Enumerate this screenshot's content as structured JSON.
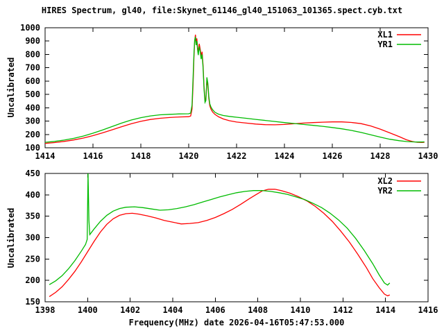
{
  "title": "HIRES Spectrum, gl40, file:Skynet_61146_gl40_151063_101365.spect.cyb.txt",
  "colors": {
    "background": "#ffffff",
    "axis": "#000000",
    "xl_series": "#ff0000",
    "yr_series": "#00bb00"
  },
  "chart_data": [
    {
      "type": "line",
      "panel": "top",
      "ylabel": "Uncalibrated",
      "xlim": [
        1414,
        1430
      ],
      "ylim": [
        100,
        1000
      ],
      "xticks": [
        "1414",
        "1416",
        "1418",
        "1420",
        "1422",
        "1424",
        "1426",
        "1428",
        "1430"
      ],
      "yticks": [
        "100",
        "200",
        "300",
        "400",
        "500",
        "600",
        "700",
        "800",
        "900",
        "1000"
      ],
      "grid": false,
      "legend_position": "top-right",
      "series": [
        {
          "name": "XL1",
          "color": "#ff0000",
          "points": [
            [
              1414.0,
              133
            ],
            [
              1414.4,
              139
            ],
            [
              1414.8,
              148
            ],
            [
              1415.2,
              159
            ],
            [
              1415.6,
              173
            ],
            [
              1416.0,
              191
            ],
            [
              1416.4,
              212
            ],
            [
              1416.8,
              235
            ],
            [
              1417.2,
              258
            ],
            [
              1417.6,
              280
            ],
            [
              1418.0,
              298
            ],
            [
              1418.4,
              312
            ],
            [
              1418.8,
              321
            ],
            [
              1419.2,
              327
            ],
            [
              1419.6,
              331
            ],
            [
              1420.0,
              333
            ],
            [
              1420.08,
              338
            ],
            [
              1420.14,
              390
            ],
            [
              1420.18,
              560
            ],
            [
              1420.22,
              780
            ],
            [
              1420.25,
              900
            ],
            [
              1420.28,
              948
            ],
            [
              1420.31,
              890
            ],
            [
              1420.34,
              920
            ],
            [
              1420.37,
              855
            ],
            [
              1420.4,
              815
            ],
            [
              1420.44,
              880
            ],
            [
              1420.48,
              840
            ],
            [
              1420.52,
              790
            ],
            [
              1420.56,
              820
            ],
            [
              1420.6,
              720
            ],
            [
              1420.64,
              560
            ],
            [
              1420.68,
              455
            ],
            [
              1420.72,
              470
            ],
            [
              1420.76,
              600
            ],
            [
              1420.8,
              565
            ],
            [
              1420.84,
              470
            ],
            [
              1420.88,
              415
            ],
            [
              1420.93,
              390
            ],
            [
              1421.0,
              368
            ],
            [
              1421.1,
              350
            ],
            [
              1421.25,
              332
            ],
            [
              1421.45,
              316
            ],
            [
              1421.7,
              303
            ],
            [
              1422.0,
              293
            ],
            [
              1422.4,
              285
            ],
            [
              1422.8,
              278
            ],
            [
              1423.2,
              273
            ],
            [
              1423.6,
              272
            ],
            [
              1424.0,
              275
            ],
            [
              1424.4,
              280
            ],
            [
              1424.8,
              285
            ],
            [
              1425.2,
              289
            ],
            [
              1425.6,
              292
            ],
            [
              1426.0,
              294
            ],
            [
              1426.4,
              294
            ],
            [
              1426.8,
              290
            ],
            [
              1427.2,
              281
            ],
            [
              1427.6,
              264
            ],
            [
              1428.0,
              240
            ],
            [
              1428.4,
              212
            ],
            [
              1428.8,
              183
            ],
            [
              1429.1,
              160
            ],
            [
              1429.35,
              147
            ],
            [
              1429.55,
              141
            ],
            [
              1429.75,
              140
            ],
            [
              1429.85,
              141
            ]
          ]
        },
        {
          "name": "YR1",
          "color": "#00bb00",
          "points": [
            [
              1414.0,
              141
            ],
            [
              1414.4,
              148
            ],
            [
              1414.8,
              158
            ],
            [
              1415.2,
              171
            ],
            [
              1415.6,
              188
            ],
            [
              1416.0,
              209
            ],
            [
              1416.4,
              233
            ],
            [
              1416.8,
              259
            ],
            [
              1417.2,
              285
            ],
            [
              1417.6,
              308
            ],
            [
              1418.0,
              326
            ],
            [
              1418.4,
              339
            ],
            [
              1418.8,
              347
            ],
            [
              1419.2,
              351
            ],
            [
              1419.6,
              354
            ],
            [
              1420.0,
              355
            ],
            [
              1420.08,
              360
            ],
            [
              1420.14,
              420
            ],
            [
              1420.18,
              610
            ],
            [
              1420.22,
              810
            ],
            [
              1420.25,
              905
            ],
            [
              1420.28,
              932
            ],
            [
              1420.31,
              870
            ],
            [
              1420.34,
              900
            ],
            [
              1420.37,
              835
            ],
            [
              1420.4,
              795
            ],
            [
              1420.44,
              860
            ],
            [
              1420.48,
              820
            ],
            [
              1420.52,
              765
            ],
            [
              1420.56,
              800
            ],
            [
              1420.6,
              700
            ],
            [
              1420.64,
              540
            ],
            [
              1420.68,
              440
            ],
            [
              1420.72,
              455
            ],
            [
              1420.76,
              628
            ],
            [
              1420.8,
              585
            ],
            [
              1420.84,
              485
            ],
            [
              1420.88,
              430
            ],
            [
              1420.93,
              405
            ],
            [
              1421.0,
              385
            ],
            [
              1421.1,
              366
            ],
            [
              1421.25,
              352
            ],
            [
              1421.45,
              342
            ],
            [
              1421.7,
              335
            ],
            [
              1422.0,
              329
            ],
            [
              1422.4,
              321
            ],
            [
              1422.8,
              313
            ],
            [
              1423.2,
              305
            ],
            [
              1423.6,
              297
            ],
            [
              1424.0,
              289
            ],
            [
              1424.4,
              282
            ],
            [
              1424.8,
              275
            ],
            [
              1425.2,
              268
            ],
            [
              1425.6,
              261
            ],
            [
              1426.0,
              252
            ],
            [
              1426.4,
              242
            ],
            [
              1426.8,
              230
            ],
            [
              1427.2,
              215
            ],
            [
              1427.6,
              198
            ],
            [
              1428.0,
              180
            ],
            [
              1428.4,
              164
            ],
            [
              1428.8,
              153
            ],
            [
              1429.1,
              147
            ],
            [
              1429.35,
              144
            ],
            [
              1429.55,
              143
            ],
            [
              1429.75,
              143
            ],
            [
              1429.85,
              144
            ]
          ]
        }
      ]
    },
    {
      "type": "line",
      "panel": "bottom",
      "xlabel": "Frequency(MHz) date 2026-04-16T05:47:53.000",
      "ylabel": "Uncalibrated",
      "xlim": [
        1398,
        1416
      ],
      "ylim": [
        150,
        450
      ],
      "xticks": [
        "1398",
        "1400",
        "1402",
        "1404",
        "1406",
        "1408",
        "1410",
        "1412",
        "1414",
        "1416"
      ],
      "yticks": [
        "150",
        "200",
        "250",
        "300",
        "350",
        "400",
        "450"
      ],
      "grid": false,
      "legend_position": "top-right",
      "series": [
        {
          "name": "XL2",
          "color": "#ff0000",
          "points": [
            [
              1398.2,
              162
            ],
            [
              1398.5,
              172
            ],
            [
              1398.8,
              185
            ],
            [
              1399.1,
              202
            ],
            [
              1399.4,
              221
            ],
            [
              1399.7,
              243
            ],
            [
              1400.0,
              267
            ],
            [
              1400.3,
              291
            ],
            [
              1400.6,
              313
            ],
            [
              1400.9,
              331
            ],
            [
              1401.2,
              344
            ],
            [
              1401.5,
              352
            ],
            [
              1401.8,
              356
            ],
            [
              1402.1,
              357
            ],
            [
              1402.4,
              355
            ],
            [
              1402.8,
              351
            ],
            [
              1403.2,
              346
            ],
            [
              1403.6,
              340
            ],
            [
              1404.0,
              336
            ],
            [
              1404.4,
              332
            ],
            [
              1404.8,
              333
            ],
            [
              1405.2,
              335
            ],
            [
              1405.6,
              340
            ],
            [
              1406.0,
              347
            ],
            [
              1406.4,
              356
            ],
            [
              1406.8,
              366
            ],
            [
              1407.2,
              378
            ],
            [
              1407.6,
              391
            ],
            [
              1407.9,
              400
            ],
            [
              1408.2,
              409
            ],
            [
              1408.5,
              413
            ],
            [
              1408.8,
              413
            ],
            [
              1409.1,
              410
            ],
            [
              1409.5,
              404
            ],
            [
              1409.9,
              396
            ],
            [
              1410.3,
              386
            ],
            [
              1410.7,
              373
            ],
            [
              1411.1,
              357
            ],
            [
              1411.5,
              338
            ],
            [
              1411.9,
              315
            ],
            [
              1412.3,
              290
            ],
            [
              1412.7,
              261
            ],
            [
              1413.1,
              230
            ],
            [
              1413.4,
              204
            ],
            [
              1413.7,
              183
            ],
            [
              1413.95,
              168
            ],
            [
              1414.1,
              164
            ],
            [
              1414.2,
              166
            ]
          ]
        },
        {
          "name": "YR2",
          "color": "#00bb00",
          "points": [
            [
              1398.2,
              190
            ],
            [
              1398.5,
              199
            ],
            [
              1398.8,
              211
            ],
            [
              1399.1,
              227
            ],
            [
              1399.4,
              246
            ],
            [
              1399.7,
              268
            ],
            [
              1399.9,
              284
            ],
            [
              1399.98,
              296
            ],
            [
              1400.02,
              450
            ],
            [
              1400.06,
              340
            ],
            [
              1400.1,
              307
            ],
            [
              1400.3,
              320
            ],
            [
              1400.6,
              338
            ],
            [
              1400.9,
              352
            ],
            [
              1401.2,
              362
            ],
            [
              1401.5,
              368
            ],
            [
              1401.8,
              371
            ],
            [
              1402.2,
              372
            ],
            [
              1402.6,
              370
            ],
            [
              1403.0,
              367
            ],
            [
              1403.4,
              364
            ],
            [
              1403.8,
              365
            ],
            [
              1404.2,
              368
            ],
            [
              1404.6,
              372
            ],
            [
              1405.0,
              377
            ],
            [
              1405.4,
              383
            ],
            [
              1405.8,
              389
            ],
            [
              1406.2,
              395
            ],
            [
              1406.6,
              400
            ],
            [
              1407.0,
              405
            ],
            [
              1407.4,
              408
            ],
            [
              1407.8,
              410
            ],
            [
              1408.2,
              410
            ],
            [
              1408.6,
              408
            ],
            [
              1409.0,
              405
            ],
            [
              1409.4,
              401
            ],
            [
              1409.8,
              395
            ],
            [
              1410.2,
              389
            ],
            [
              1410.6,
              380
            ],
            [
              1411.0,
              370
            ],
            [
              1411.4,
              357
            ],
            [
              1411.8,
              341
            ],
            [
              1412.2,
              322
            ],
            [
              1412.6,
              298
            ],
            [
              1413.0,
              270
            ],
            [
              1413.4,
              239
            ],
            [
              1413.7,
              213
            ],
            [
              1413.95,
              194
            ],
            [
              1414.1,
              189
            ],
            [
              1414.2,
              194
            ]
          ]
        }
      ]
    }
  ]
}
